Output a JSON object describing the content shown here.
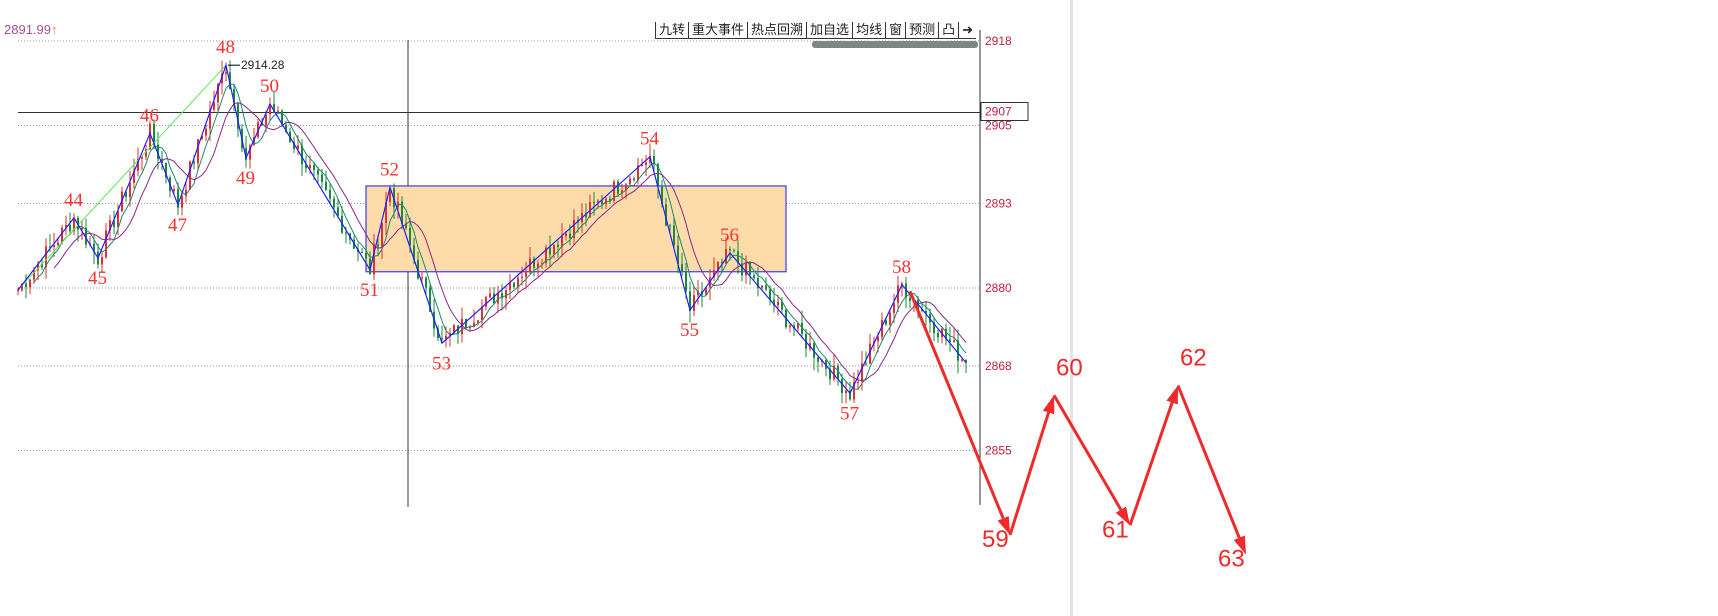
{
  "header": {
    "info_value": "2891.99",
    "info_arrow": "↑"
  },
  "toolbar": [
    "九转",
    "重大事件",
    "热点回溯",
    "加自选",
    "均线",
    "窗",
    "预测",
    "凸",
    "➜"
  ],
  "colors": {
    "up": "#e03030",
    "down": "#1a8a3a",
    "wave": "#2020ff",
    "label": "#ff3030",
    "projection": "#ee2a2a",
    "box_fill": "#fddcaa",
    "box_stroke": "#3a3aff",
    "ma1": "#1a8a70",
    "ma2": "#8a2a8a",
    "trend": "#55ee55",
    "axis_text": "#c02040"
  },
  "chart_data": {
    "type": "candlestick",
    "y_axis": {
      "ticks": [
        2918,
        2905,
        2893,
        2880,
        2868,
        2855
      ],
      "range": [
        2849,
        2923
      ],
      "grid": "dotted",
      "position": "right"
    },
    "crosshair": {
      "price_label": "2907"
    },
    "high_annotation": {
      "label": "48",
      "value": "2914.28"
    },
    "wave_points": [
      {
        "label": "",
        "bar": 0,
        "price": 2879.7
      },
      {
        "label": "44",
        "bar": 14,
        "price": 2890.8
      },
      {
        "label": "45",
        "bar": 20,
        "price": 2884.6
      },
      {
        "label": "46",
        "bar": 33,
        "price": 2903.8
      },
      {
        "label": "47",
        "bar": 40,
        "price": 2892.8
      },
      {
        "label": "48",
        "bar": 52,
        "price": 2914.28
      },
      {
        "label": "49",
        "bar": 57,
        "price": 2900.0
      },
      {
        "label": "50",
        "bar": 63,
        "price": 2908.3
      },
      {
        "label": "51",
        "bar": 88,
        "price": 2882.8
      },
      {
        "label": "52",
        "bar": 93,
        "price": 2895.5
      },
      {
        "label": "53",
        "bar": 106,
        "price": 2871.5
      },
      {
        "label": "54",
        "bar": 158,
        "price": 2900.2
      },
      {
        "label": "55",
        "bar": 168,
        "price": 2876.6
      },
      {
        "label": "56",
        "bar": 178,
        "price": 2885.4
      },
      {
        "label": "57",
        "bar": 208,
        "price": 2863.8
      },
      {
        "label": "58",
        "bar": 221,
        "price": 2880.5
      },
      {
        "label": "",
        "bar": 237,
        "price": 2868.5
      }
    ],
    "projection": [
      {
        "label": "",
        "bar": 223,
        "price": 2879.5
      },
      {
        "label": "59",
        "bar": 248,
        "price": 2842
      },
      {
        "label": "60",
        "bar": 259,
        "price": 2863.5
      },
      {
        "label": "61",
        "bar": 278,
        "price": 2843.5
      },
      {
        "label": "62",
        "bar": 290,
        "price": 2865
      },
      {
        "label": "63",
        "bar": 307,
        "price": 2839
      }
    ],
    "box": {
      "bar_start": 87,
      "bar_end": 192,
      "top": 2895.7,
      "bottom": 2882.5
    }
  }
}
